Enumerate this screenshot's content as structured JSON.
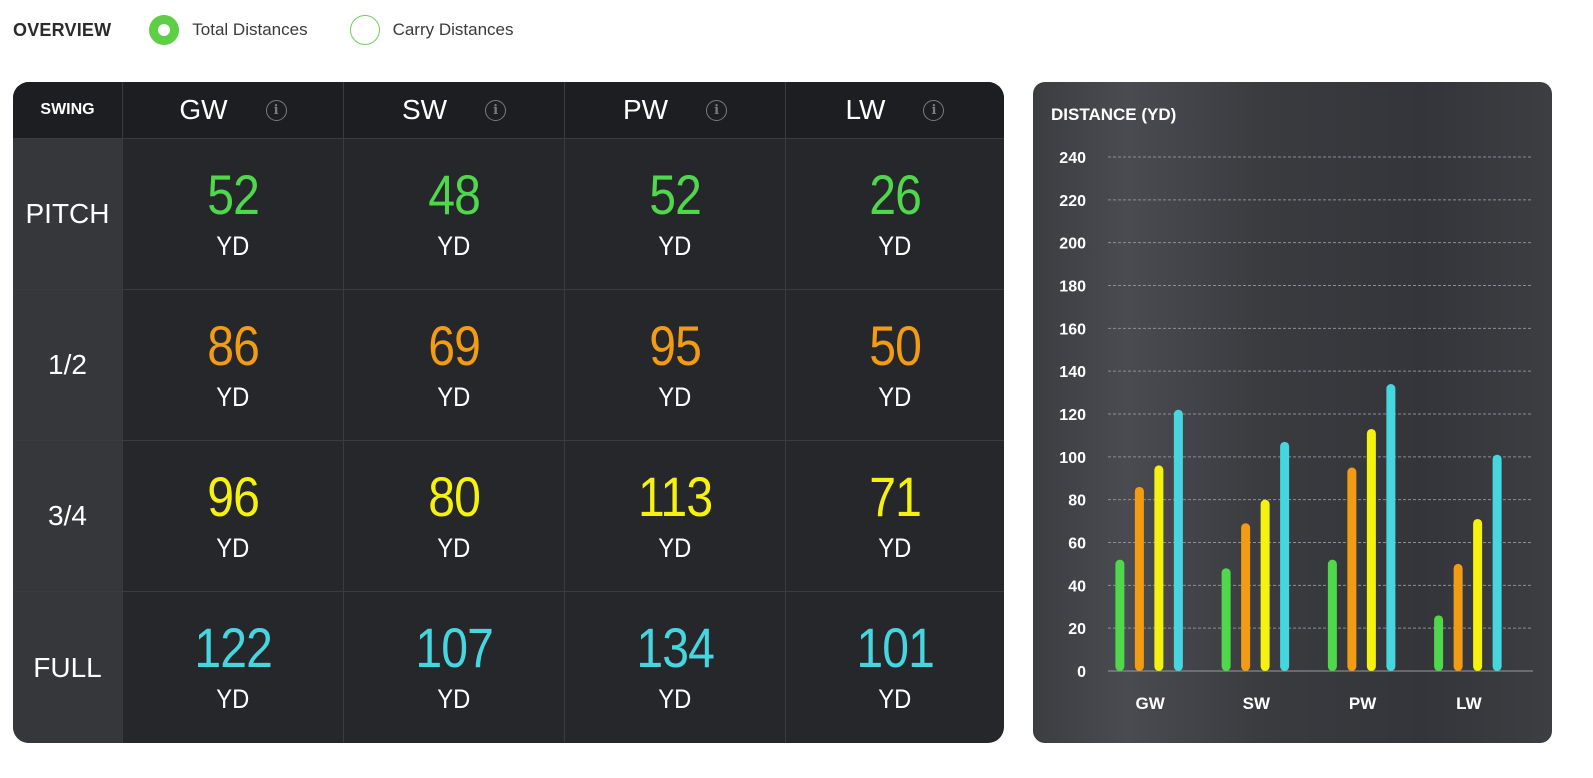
{
  "overview": {
    "title": "OVERVIEW",
    "options": [
      {
        "label": "Total Distances",
        "selected": true
      },
      {
        "label": "Carry Distances",
        "selected": false
      }
    ]
  },
  "table": {
    "header_swing": "SWING",
    "clubs": [
      "GW",
      "SW",
      "PW",
      "LW"
    ],
    "unit": "YD",
    "rows": [
      {
        "swing": "PITCH",
        "color": "#4fd84c",
        "values": [
          "52",
          "48",
          "52",
          "26"
        ]
      },
      {
        "swing": "1/2",
        "color": "#f29c14",
        "values": [
          "86",
          "69",
          "95",
          "50"
        ]
      },
      {
        "swing": "3/4",
        "color": "#f6f20f",
        "values": [
          "96",
          "80",
          "113",
          "71"
        ]
      },
      {
        "swing": "FULL",
        "color": "#46d6df",
        "values": [
          "122",
          "107",
          "134",
          "101"
        ]
      }
    ]
  },
  "chart_data": {
    "type": "bar",
    "title": "DISTANCE (YD)",
    "categories": [
      "GW",
      "SW",
      "PW",
      "LW"
    ],
    "ylim": [
      0,
      240
    ],
    "yticks": [
      0,
      20,
      40,
      60,
      80,
      100,
      120,
      140,
      160,
      180,
      200,
      220,
      240
    ],
    "grid": true,
    "series": [
      {
        "color": "#4fd84c",
        "values": [
          52,
          48,
          52,
          26
        ]
      },
      {
        "color": "#f29c14",
        "values": [
          86,
          69,
          95,
          50
        ]
      },
      {
        "color": "#f6f20f",
        "values": [
          96,
          80,
          113,
          71
        ]
      },
      {
        "color": "#46d6df",
        "values": [
          122,
          107,
          134,
          101
        ]
      }
    ]
  }
}
